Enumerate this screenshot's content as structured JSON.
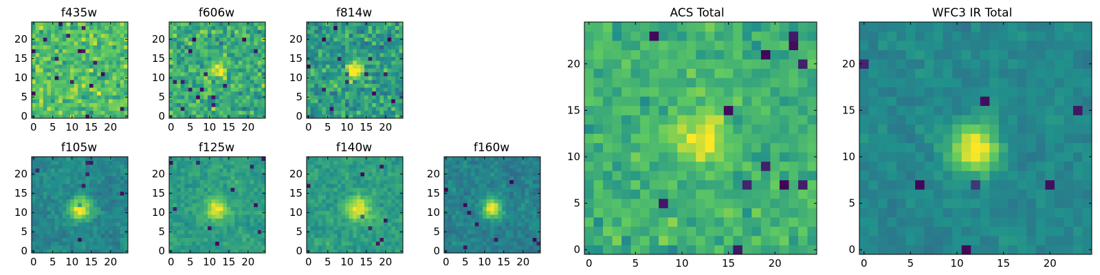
{
  "colormap": {
    "name": "viridis",
    "stops": [
      "#440154",
      "#3b528b",
      "#21918c",
      "#5ec962",
      "#fde725"
    ]
  },
  "chart_data": [
    {
      "type": "heatmap",
      "title": "f435w",
      "size": "small",
      "grid": "25x25 pixel cutout",
      "xlim": [
        0,
        24
      ],
      "ylim": [
        0,
        24
      ],
      "xticks": [
        0,
        5,
        10,
        15,
        20
      ],
      "yticks": [
        0,
        5,
        10,
        15,
        20
      ],
      "colormap": "viridis",
      "background_level": 0.7,
      "noise": 0.3,
      "source_peak": 0.0,
      "source_center": [
        12,
        12
      ],
      "source_width": 2.0,
      "dark_spots": 16,
      "seed": 11
    },
    {
      "type": "heatmap",
      "title": "f606w",
      "size": "small",
      "grid": "25x25 pixel cutout",
      "xlim": [
        0,
        24
      ],
      "ylim": [
        0,
        24
      ],
      "xticks": [
        0,
        5,
        10,
        15,
        20
      ],
      "yticks": [
        0,
        5,
        10,
        15,
        20
      ],
      "colormap": "viridis",
      "background_level": 0.62,
      "noise": 0.3,
      "source_peak": 0.3,
      "source_center": [
        12,
        12
      ],
      "source_width": 1.6,
      "dark_spots": 14,
      "seed": 23
    },
    {
      "type": "heatmap",
      "title": "f814w",
      "size": "small",
      "grid": "25x25 pixel cutout",
      "xlim": [
        0,
        24
      ],
      "ylim": [
        0,
        24
      ],
      "xticks": [
        0,
        5,
        10,
        15,
        20
      ],
      "yticks": [
        0,
        5,
        10,
        15,
        20
      ],
      "colormap": "viridis",
      "background_level": 0.55,
      "noise": 0.3,
      "source_peak": 0.55,
      "source_center": [
        12,
        12
      ],
      "source_width": 1.6,
      "dark_spots": 14,
      "seed": 37
    },
    {
      "type": "heatmap",
      "title": "f105w",
      "size": "small",
      "grid": "25x25 pixel cutout",
      "xlim": [
        0,
        24
      ],
      "ylim": [
        0,
        24
      ],
      "xticks": [
        0,
        5,
        10,
        15,
        20
      ],
      "yticks": [
        0,
        5,
        10,
        15,
        20
      ],
      "colormap": "viridis",
      "background_level": 0.46,
      "noise": 0.16,
      "source_peak": 0.55,
      "source_center": [
        12,
        11
      ],
      "source_width": 2.0,
      "dark_spots": 8,
      "seed": 41
    },
    {
      "type": "heatmap",
      "title": "f125w",
      "size": "small",
      "grid": "25x25 pixel cutout",
      "xlim": [
        0,
        24
      ],
      "ylim": [
        0,
        24
      ],
      "xticks": [
        0,
        5,
        10,
        15,
        20
      ],
      "yticks": [
        0,
        5,
        10,
        15,
        20
      ],
      "colormap": "viridis",
      "background_level": 0.56,
      "noise": 0.16,
      "source_peak": 0.45,
      "source_center": [
        12,
        11
      ],
      "source_width": 2.0,
      "dark_spots": 10,
      "seed": 53
    },
    {
      "type": "heatmap",
      "title": "f140w",
      "size": "small",
      "grid": "25x25 pixel cutout",
      "xlim": [
        0,
        24
      ],
      "ylim": [
        0,
        24
      ],
      "xticks": [
        0,
        5,
        10,
        15,
        20
      ],
      "yticks": [
        0,
        5,
        10,
        15,
        20
      ],
      "colormap": "viridis",
      "background_level": 0.56,
      "noise": 0.16,
      "source_peak": 0.45,
      "source_center": [
        13,
        11
      ],
      "source_width": 2.2,
      "dark_spots": 8,
      "seed": 67
    },
    {
      "type": "heatmap",
      "title": "f160w",
      "size": "small",
      "grid": "25x25 pixel cutout",
      "xlim": [
        0,
        24
      ],
      "ylim": [
        0,
        24
      ],
      "xticks": [
        0,
        5,
        10,
        15,
        20
      ],
      "yticks": [
        0,
        5,
        10,
        15,
        20
      ],
      "colormap": "viridis",
      "background_level": 0.44,
      "noise": 0.16,
      "source_peak": 0.6,
      "source_center": [
        12,
        11
      ],
      "source_width": 1.7,
      "dark_spots": 9,
      "seed": 79
    },
    {
      "type": "heatmap",
      "title": "ACS Total",
      "size": "large",
      "grid": "25x25 pixel cutout",
      "xlim": [
        0,
        24
      ],
      "ylim": [
        0,
        24
      ],
      "xticks": [
        0,
        5,
        10,
        15,
        20
      ],
      "yticks": [
        0,
        5,
        10,
        15,
        20
      ],
      "colormap": "viridis",
      "background_level": 0.64,
      "noise": 0.2,
      "source_peak": 0.4,
      "source_center": [
        12,
        12
      ],
      "source_width": 1.8,
      "dark_spots": 12,
      "seed": 97
    },
    {
      "type": "heatmap",
      "title": "WFC3 IR Total",
      "size": "large",
      "grid": "25x25 pixel cutout",
      "xlim": [
        0,
        24
      ],
      "ylim": [
        0,
        24
      ],
      "xticks": [
        0,
        5,
        10,
        15,
        20
      ],
      "yticks": [
        0,
        5,
        10,
        15,
        20
      ],
      "colormap": "viridis",
      "background_level": 0.46,
      "noise": 0.12,
      "source_peak": 0.6,
      "source_center": [
        12,
        11
      ],
      "source_width": 1.8,
      "dark_spots": 7,
      "seed": 113
    }
  ]
}
